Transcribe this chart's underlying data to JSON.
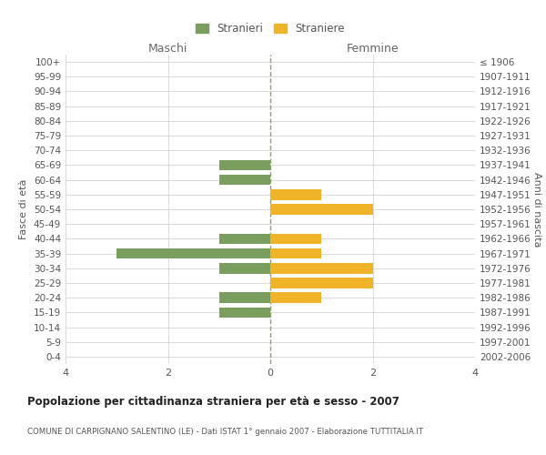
{
  "age_groups": [
    "100+",
    "95-99",
    "90-94",
    "85-89",
    "80-84",
    "75-79",
    "70-74",
    "65-69",
    "60-64",
    "55-59",
    "50-54",
    "45-49",
    "40-44",
    "35-39",
    "30-34",
    "25-29",
    "20-24",
    "15-19",
    "10-14",
    "5-9",
    "0-4"
  ],
  "birth_years": [
    "≤ 1906",
    "1907-1911",
    "1912-1916",
    "1917-1921",
    "1922-1926",
    "1927-1931",
    "1932-1936",
    "1937-1941",
    "1942-1946",
    "1947-1951",
    "1952-1956",
    "1957-1961",
    "1962-1966",
    "1967-1971",
    "1972-1976",
    "1977-1981",
    "1982-1986",
    "1987-1991",
    "1992-1996",
    "1997-2001",
    "2002-2006"
  ],
  "males": [
    0,
    0,
    0,
    0,
    0,
    0,
    0,
    -1,
    -1,
    0,
    0,
    0,
    -1,
    -3,
    -1,
    0,
    -1,
    -1,
    0,
    0,
    0
  ],
  "females": [
    0,
    0,
    0,
    0,
    0,
    0,
    0,
    0,
    0,
    1,
    2,
    0,
    1,
    1,
    2,
    2,
    1,
    0,
    0,
    0,
    0
  ],
  "male_color": "#7a9e5e",
  "female_color": "#f0b429",
  "grid_color": "#cccccc",
  "center_line_color": "#999966",
  "title": "Popolazione per cittadinanza straniera per età e sesso - 2007",
  "subtitle": "COMUNE DI CARPIGNANO SALENTINO (LE) - Dati ISTAT 1° gennaio 2007 - Elaborazione TUTTITALIA.IT",
  "ylabel_left": "Fasce di età",
  "ylabel_right": "Anni di nascita",
  "xlabel_left": "Maschi",
  "xlabel_right": "Femmine",
  "legend_male": "Stranieri",
  "legend_female": "Straniere",
  "xlim": [
    -4,
    4
  ],
  "xticks": [
    -4,
    -2,
    0,
    2,
    4
  ],
  "xticklabels": [
    "4",
    "2",
    "0",
    "2",
    "4"
  ],
  "background_color": "#ffffff"
}
